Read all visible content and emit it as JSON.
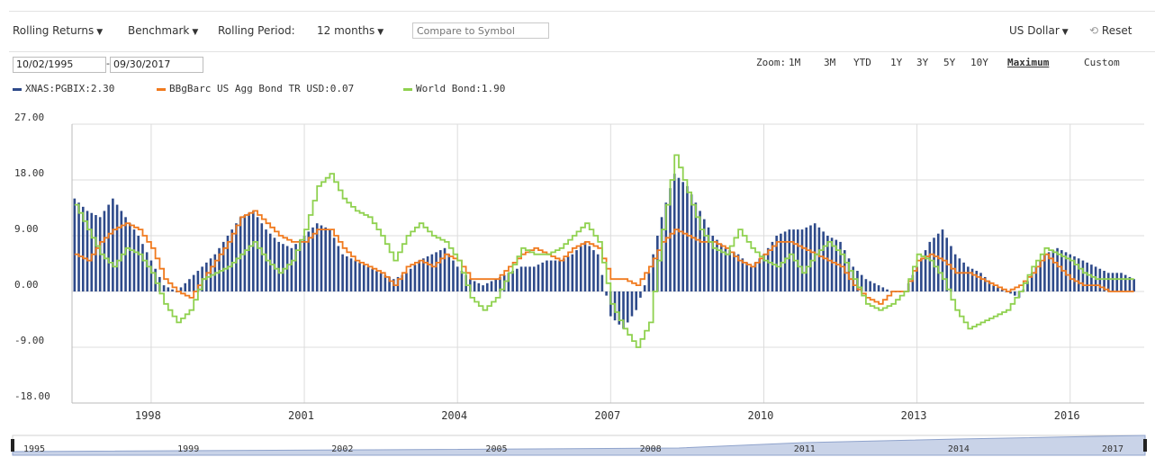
{
  "toolbar": {
    "rolling_returns": "Rolling Returns",
    "benchmark": "Benchmark",
    "rolling_period_label": "Rolling Period:",
    "rolling_period_value": "12 months",
    "compare_placeholder": "Compare to Symbol",
    "currency": "US Dollar",
    "reset": "Reset"
  },
  "date_range": {
    "start": "10/02/1995",
    "separator": "-",
    "end": "09/30/2017"
  },
  "zoom": {
    "label": "Zoom:",
    "options": [
      "1M",
      "3M",
      "YTD",
      "1Y",
      "3Y",
      "5Y",
      "10Y",
      "Maximum",
      "Custom"
    ],
    "active": "Maximum"
  },
  "legend": [
    {
      "label": "XNAS:PGBIX:2.30",
      "color": "#2e4a8a"
    },
    {
      "label": "BBgBarc US Agg Bond TR USD:0.07",
      "color": "#f07a1e"
    },
    {
      "label": "World Bond:1.90",
      "color": "#8fd14f"
    }
  ],
  "navigator": {
    "labels": [
      "1995",
      "1999",
      "2002",
      "2005",
      "2008",
      "2011",
      "2014",
      "2017"
    ]
  },
  "chart_data": {
    "type": "bar",
    "ylim": [
      -18,
      27
    ],
    "y_ticks": [
      "27.00",
      "18.00",
      "9.00",
      "0.00",
      "-9.00",
      "-18.00"
    ],
    "x_ticks": [
      "1998",
      "2001",
      "2004",
      "2007",
      "2010",
      "2013",
      "2016"
    ],
    "x_range": [
      1996.45,
      2017.45
    ],
    "grid": true,
    "series": [
      {
        "name": "XNAS:PGBIX",
        "type": "bar",
        "color": "#2e4a8a",
        "points": [
          [
            1996.5,
            15
          ],
          [
            1996.75,
            13
          ],
          [
            1997.0,
            12
          ],
          [
            1997.25,
            15
          ],
          [
            1997.5,
            12
          ],
          [
            1997.75,
            9
          ],
          [
            1998.0,
            5
          ],
          [
            1998.25,
            1
          ],
          [
            1998.5,
            0
          ],
          [
            1998.75,
            2
          ],
          [
            1999.0,
            4
          ],
          [
            1999.25,
            6
          ],
          [
            1999.5,
            9
          ],
          [
            1999.75,
            12
          ],
          [
            2000.0,
            13
          ],
          [
            2000.25,
            10
          ],
          [
            2000.5,
            8
          ],
          [
            2000.75,
            7
          ],
          [
            2001.0,
            9
          ],
          [
            2001.25,
            11
          ],
          [
            2001.5,
            10
          ],
          [
            2001.75,
            6
          ],
          [
            2002.0,
            5
          ],
          [
            2002.25,
            4
          ],
          [
            2002.5,
            3
          ],
          [
            2002.75,
            2
          ],
          [
            2003.0,
            3
          ],
          [
            2003.25,
            5
          ],
          [
            2003.5,
            6
          ],
          [
            2003.75,
            7
          ],
          [
            2004.0,
            4
          ],
          [
            2004.25,
            2
          ],
          [
            2004.5,
            1
          ],
          [
            2004.75,
            2
          ],
          [
            2005.0,
            3
          ],
          [
            2005.25,
            4
          ],
          [
            2005.5,
            4
          ],
          [
            2005.75,
            5
          ],
          [
            2006.0,
            5
          ],
          [
            2006.25,
            6
          ],
          [
            2006.5,
            8
          ],
          [
            2006.75,
            6
          ],
          [
            2007.0,
            -4
          ],
          [
            2007.25,
            -6
          ],
          [
            2007.5,
            -3
          ],
          [
            2007.75,
            3
          ],
          [
            2008.0,
            12
          ],
          [
            2008.25,
            19
          ],
          [
            2008.5,
            17
          ],
          [
            2008.75,
            13
          ],
          [
            2009.0,
            9
          ],
          [
            2009.25,
            7
          ],
          [
            2009.5,
            6
          ],
          [
            2009.75,
            4
          ],
          [
            2010.0,
            6
          ],
          [
            2010.25,
            9
          ],
          [
            2010.5,
            10
          ],
          [
            2010.75,
            10
          ],
          [
            2011.0,
            11
          ],
          [
            2011.25,
            9
          ],
          [
            2011.5,
            8
          ],
          [
            2011.75,
            4
          ],
          [
            2012.0,
            2
          ],
          [
            2012.25,
            1
          ],
          [
            2012.5,
            0
          ],
          [
            2012.75,
            0
          ],
          [
            2013.0,
            4
          ],
          [
            2013.25,
            8
          ],
          [
            2013.5,
            10
          ],
          [
            2013.75,
            6
          ],
          [
            2014.0,
            4
          ],
          [
            2014.25,
            3
          ],
          [
            2014.5,
            1
          ],
          [
            2014.75,
            0
          ],
          [
            2015.0,
            -1
          ],
          [
            2015.25,
            3
          ],
          [
            2015.5,
            6
          ],
          [
            2015.75,
            7
          ],
          [
            2016.0,
            6
          ],
          [
            2016.25,
            5
          ],
          [
            2016.5,
            4
          ],
          [
            2016.75,
            3
          ],
          [
            2017.0,
            3
          ],
          [
            2017.25,
            2
          ]
        ]
      },
      {
        "name": "BBgBarc US Agg Bond TR USD",
        "type": "line",
        "color": "#f07a1e",
        "points": [
          [
            1996.5,
            6
          ],
          [
            1996.75,
            5
          ],
          [
            1997.0,
            8
          ],
          [
            1997.25,
            10
          ],
          [
            1997.5,
            11
          ],
          [
            1997.75,
            10
          ],
          [
            1998.0,
            7
          ],
          [
            1998.25,
            2
          ],
          [
            1998.5,
            0
          ],
          [
            1998.75,
            -1
          ],
          [
            1999.0,
            2
          ],
          [
            1999.25,
            5
          ],
          [
            1999.5,
            8
          ],
          [
            1999.75,
            12
          ],
          [
            2000.0,
            13
          ],
          [
            2000.25,
            11
          ],
          [
            2000.5,
            9
          ],
          [
            2000.75,
            8
          ],
          [
            2001.0,
            8
          ],
          [
            2001.25,
            10
          ],
          [
            2001.5,
            10
          ],
          [
            2001.75,
            7
          ],
          [
            2002.0,
            5
          ],
          [
            2002.25,
            4
          ],
          [
            2002.5,
            3
          ],
          [
            2002.75,
            1
          ],
          [
            2003.0,
            4
          ],
          [
            2003.25,
            5
          ],
          [
            2003.5,
            4
          ],
          [
            2003.75,
            6
          ],
          [
            2004.0,
            5
          ],
          [
            2004.25,
            2
          ],
          [
            2004.5,
            2
          ],
          [
            2004.75,
            2
          ],
          [
            2005.0,
            4
          ],
          [
            2005.25,
            6
          ],
          [
            2005.5,
            7
          ],
          [
            2005.75,
            6
          ],
          [
            2006.0,
            5
          ],
          [
            2006.25,
            7
          ],
          [
            2006.5,
            8
          ],
          [
            2006.75,
            7
          ],
          [
            2007.0,
            2
          ],
          [
            2007.25,
            2
          ],
          [
            2007.5,
            1
          ],
          [
            2007.75,
            4
          ],
          [
            2008.0,
            8
          ],
          [
            2008.25,
            10
          ],
          [
            2008.5,
            9
          ],
          [
            2008.75,
            8
          ],
          [
            2009.0,
            8
          ],
          [
            2009.25,
            7
          ],
          [
            2009.5,
            5
          ],
          [
            2009.75,
            4
          ],
          [
            2010.0,
            6
          ],
          [
            2010.25,
            8
          ],
          [
            2010.5,
            8
          ],
          [
            2010.75,
            7
          ],
          [
            2011.0,
            6
          ],
          [
            2011.25,
            5
          ],
          [
            2011.5,
            4
          ],
          [
            2011.75,
            1
          ],
          [
            2012.0,
            -1
          ],
          [
            2012.25,
            -2
          ],
          [
            2012.5,
            0
          ],
          [
            2012.75,
            0
          ],
          [
            2013.0,
            5
          ],
          [
            2013.25,
            6
          ],
          [
            2013.5,
            5
          ],
          [
            2013.75,
            3
          ],
          [
            2014.0,
            3
          ],
          [
            2014.25,
            2
          ],
          [
            2014.5,
            1
          ],
          [
            2014.75,
            0
          ],
          [
            2015.0,
            1
          ],
          [
            2015.25,
            3
          ],
          [
            2015.5,
            6
          ],
          [
            2015.75,
            4
          ],
          [
            2016.0,
            2
          ],
          [
            2016.25,
            1
          ],
          [
            2016.5,
            1
          ],
          [
            2016.75,
            0
          ],
          [
            2017.0,
            0
          ],
          [
            2017.25,
            0
          ]
        ]
      },
      {
        "name": "World Bond",
        "type": "line",
        "color": "#8fd14f",
        "points": [
          [
            1996.5,
            14
          ],
          [
            1996.75,
            10
          ],
          [
            1997.0,
            6
          ],
          [
            1997.25,
            4
          ],
          [
            1997.5,
            7
          ],
          [
            1997.75,
            6
          ],
          [
            1998.0,
            3
          ],
          [
            1998.25,
            -2
          ],
          [
            1998.5,
            -5
          ],
          [
            1998.75,
            -3
          ],
          [
            1999.0,
            2
          ],
          [
            1999.25,
            3
          ],
          [
            1999.5,
            4
          ],
          [
            1999.75,
            6
          ],
          [
            2000.0,
            8
          ],
          [
            2000.25,
            5
          ],
          [
            2000.5,
            3
          ],
          [
            2000.75,
            5
          ],
          [
            2001.0,
            10
          ],
          [
            2001.25,
            17
          ],
          [
            2001.5,
            19
          ],
          [
            2001.75,
            15
          ],
          [
            2002.0,
            13
          ],
          [
            2002.25,
            12
          ],
          [
            2002.5,
            9
          ],
          [
            2002.75,
            5
          ],
          [
            2003.0,
            9
          ],
          [
            2003.25,
            11
          ],
          [
            2003.5,
            9
          ],
          [
            2003.75,
            8
          ],
          [
            2004.0,
            5
          ],
          [
            2004.25,
            -1
          ],
          [
            2004.5,
            -3
          ],
          [
            2004.75,
            -1
          ],
          [
            2005.0,
            3
          ],
          [
            2005.25,
            7
          ],
          [
            2005.5,
            6
          ],
          [
            2005.75,
            6
          ],
          [
            2006.0,
            7
          ],
          [
            2006.25,
            9
          ],
          [
            2006.5,
            11
          ],
          [
            2006.75,
            8
          ],
          [
            2007.0,
            -2
          ],
          [
            2007.25,
            -6
          ],
          [
            2007.5,
            -9
          ],
          [
            2007.75,
            -5
          ],
          [
            2008.0,
            10
          ],
          [
            2008.25,
            22
          ],
          [
            2008.5,
            16
          ],
          [
            2008.75,
            10
          ],
          [
            2009.0,
            7
          ],
          [
            2009.25,
            6
          ],
          [
            2009.5,
            10
          ],
          [
            2009.75,
            7
          ],
          [
            2010.0,
            5
          ],
          [
            2010.25,
            4
          ],
          [
            2010.5,
            6
          ],
          [
            2010.75,
            3
          ],
          [
            2011.0,
            6
          ],
          [
            2011.25,
            8
          ],
          [
            2011.5,
            6
          ],
          [
            2011.75,
            2
          ],
          [
            2012.0,
            -2
          ],
          [
            2012.25,
            -3
          ],
          [
            2012.5,
            -2
          ],
          [
            2012.75,
            0
          ],
          [
            2013.0,
            6
          ],
          [
            2013.25,
            5
          ],
          [
            2013.5,
            2
          ],
          [
            2013.75,
            -3
          ],
          [
            2014.0,
            -6
          ],
          [
            2014.25,
            -5
          ],
          [
            2014.5,
            -4
          ],
          [
            2014.75,
            -3
          ],
          [
            2015.0,
            0
          ],
          [
            2015.25,
            4
          ],
          [
            2015.5,
            7
          ],
          [
            2015.75,
            6
          ],
          [
            2016.0,
            5
          ],
          [
            2016.25,
            3
          ],
          [
            2016.5,
            2
          ],
          [
            2016.75,
            2
          ],
          [
            2017.0,
            2
          ],
          [
            2017.25,
            2
          ]
        ]
      }
    ]
  }
}
